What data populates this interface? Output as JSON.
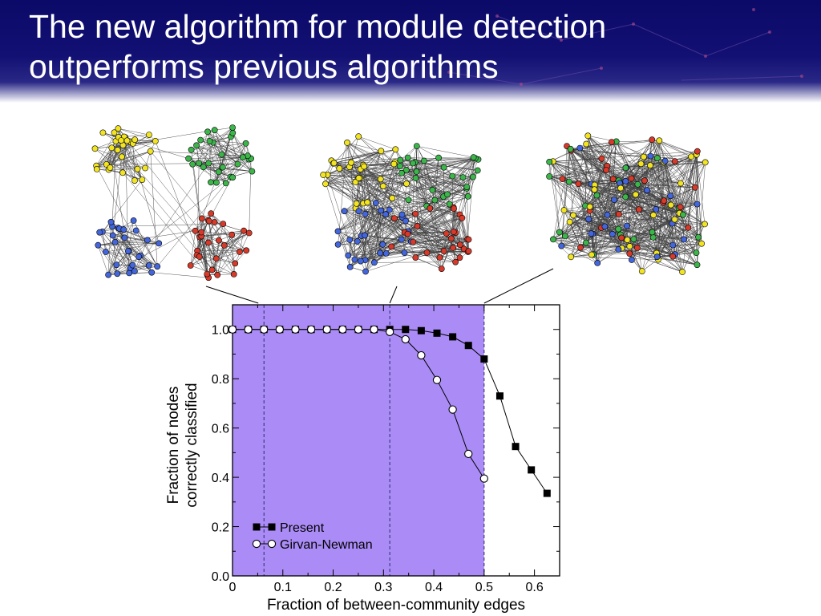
{
  "slide": {
    "title_line1": "The new algorithm for module detection",
    "title_line2": "outperforms previous algorithms"
  },
  "colors": {
    "header_bg": "#0b0a68",
    "shaded_region": "#ab8cf6",
    "node_yellow": "#f2e422",
    "node_green": "#3cb54a",
    "node_blue": "#4466dd",
    "node_red": "#d63a2a"
  },
  "networks": [
    {
      "name": "network-separated",
      "description_colors": [
        "yellow",
        "green",
        "blue",
        "red"
      ]
    },
    {
      "name": "network-mixed",
      "description_colors": [
        "yellow",
        "green",
        "blue",
        "red"
      ]
    },
    {
      "name": "network-random",
      "description_colors": [
        "yellow",
        "green",
        "blue",
        "red"
      ]
    }
  ],
  "chart_data": {
    "type": "line",
    "xlabel": "Fraction of between-community edges",
    "ylabel_line1": "Fraction of nodes",
    "ylabel_line2": "correctly classified",
    "xlim": [
      0,
      0.65
    ],
    "ylim": [
      0,
      1.1
    ],
    "xticks": [
      0,
      0.1,
      0.2,
      0.3,
      0.4,
      0.5,
      0.6
    ],
    "xtick_labels": [
      "0",
      "0.1",
      "0.2",
      "0.3",
      "0.4",
      "0.5",
      "0.6"
    ],
    "yticks": [
      0,
      0.2,
      0.4,
      0.6,
      0.8,
      1.0
    ],
    "ytick_labels": [
      "0.0",
      "0.2",
      "0.4",
      "0.6",
      "0.8",
      "1.0"
    ],
    "shaded_xrange": [
      0,
      0.5
    ],
    "dashed_vlines": [
      0.0625,
      0.3125,
      0.5
    ],
    "legend_placement": "bottom-left",
    "series": [
      {
        "name": "Present",
        "marker": "filled-square",
        "x": [
          0,
          0.03125,
          0.0625,
          0.09375,
          0.125,
          0.15625,
          0.1875,
          0.21875,
          0.25,
          0.28125,
          0.3125,
          0.34375,
          0.375,
          0.40625,
          0.4375,
          0.46875,
          0.5,
          0.53125,
          0.5625,
          0.59375,
          0.625
        ],
        "y": [
          1.0,
          1.0,
          1.0,
          1.0,
          1.0,
          1.0,
          1.0,
          1.0,
          1.0,
          1.0,
          1.0,
          1.0,
          0.995,
          0.985,
          0.97,
          0.935,
          0.88,
          0.73,
          0.525,
          0.43,
          0.335
        ]
      },
      {
        "name": "Girvan-Newman",
        "marker": "open-circle",
        "x": [
          0,
          0.03125,
          0.0625,
          0.09375,
          0.125,
          0.15625,
          0.1875,
          0.21875,
          0.25,
          0.28125,
          0.3125,
          0.34375,
          0.375,
          0.40625,
          0.4375,
          0.46875,
          0.5
        ],
        "y": [
          1.0,
          1.0,
          1.0,
          1.0,
          1.0,
          1.0,
          1.0,
          1.0,
          1.0,
          1.0,
          0.99,
          0.96,
          0.895,
          0.795,
          0.675,
          0.495,
          0.395
        ]
      }
    ]
  }
}
